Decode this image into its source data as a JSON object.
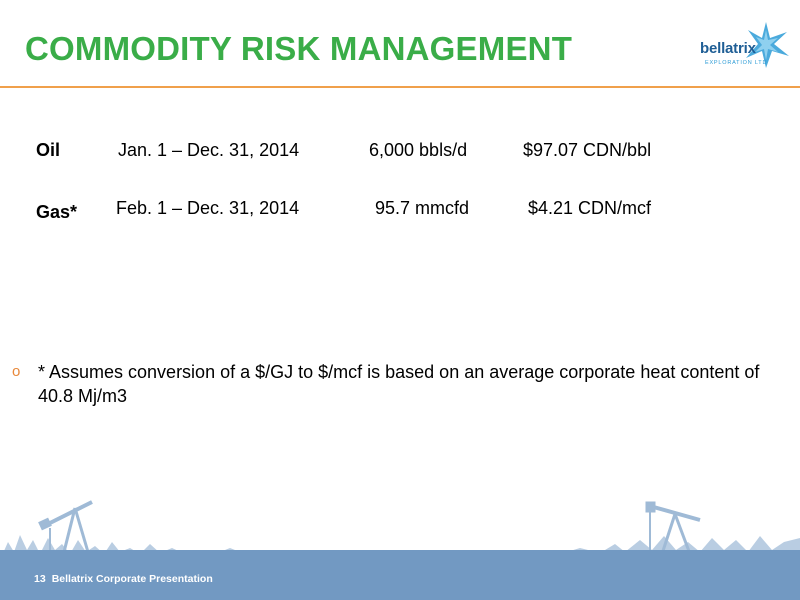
{
  "slide": {
    "title": "COMMODITY RISK MANAGEMENT",
    "accent_color": "#3aad48",
    "rule_color": "#f0a04b"
  },
  "logo": {
    "name": "bellatrix",
    "tagline": "EXPLORATION LTD",
    "icon": "star-icon"
  },
  "hedges": [
    {
      "commodity": "Oil",
      "period": "Jan. 1 – Dec. 31, 2014",
      "volume": "6,000 bbls/d",
      "price": "$97.07 CDN/bbl"
    },
    {
      "commodity": "Gas*",
      "period": "Feb. 1 – Dec. 31, 2014",
      "volume": "95.7 mmcfd",
      "price": "$4.21 CDN/mcf"
    }
  ],
  "note": {
    "bullet": "o",
    "text": "* Assumes conversion of a $/GJ to $/mcf is based on an average corporate heat content of 40.8 Mj/m3"
  },
  "footer": {
    "page_number": "13",
    "label": "Bellatrix Corporate Presentation",
    "band_color": "#7299c2"
  }
}
